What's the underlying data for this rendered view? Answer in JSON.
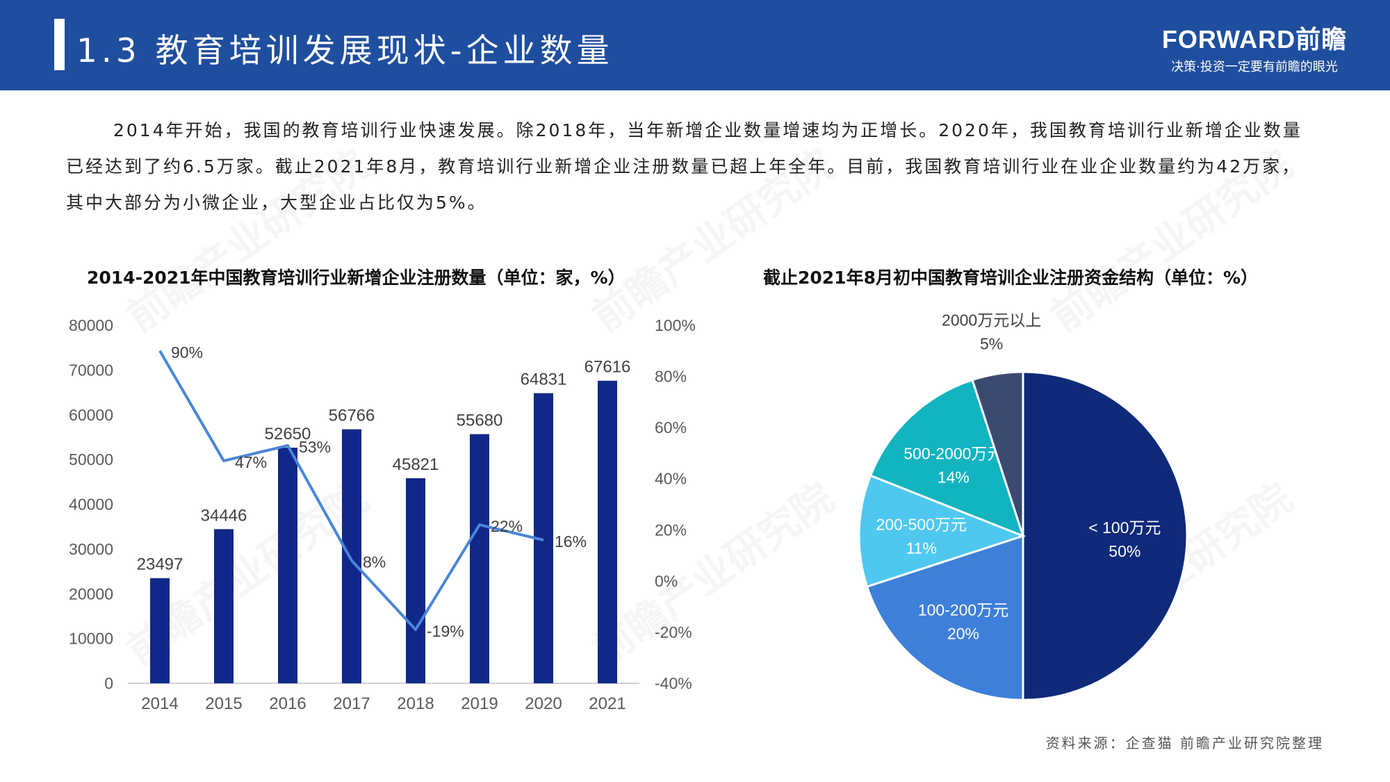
{
  "header": {
    "title": "1.3 教育培训发展现状-企业数量",
    "brand_name": "FORWARD前瞻",
    "brand_slogan": "决策·投资一定要有前瞻的眼光"
  },
  "intro_text": "2014年开始，我国的教育培训行业快速发展。除2018年，当年新增企业数量增速均为正增长。2020年，我国教育培训行业新增企业数量已经达到了约6.5万家。截止2021年8月，教育培训行业新增企业注册数量已超上年全年。目前，我国教育培训行业在业企业数量约为42万家，其中大部分为小微企业，大型企业占比仅为5%。",
  "source": "资料来源：企查猫  前瞻产业研究院整理",
  "watermark": "前瞻产业研究院",
  "colors": {
    "header_bg": "#1f4e9e",
    "bar": "#10288a",
    "line": "#4a86d8"
  },
  "chart_data": [
    {
      "type": "bar",
      "title": "2014-2021年中国教育培训行业新增企业注册数量（单位：家，%）",
      "categories": [
        "2014",
        "2015",
        "2016",
        "2017",
        "2018",
        "2019",
        "2020",
        "2021"
      ],
      "series": [
        {
          "values": [
            23497,
            34446,
            52650,
            56766,
            45821,
            55680,
            64831,
            67616
          ]
        },
        {
          "type": "line",
          "values": [
            90,
            47,
            53,
            8,
            -19,
            22,
            16,
            null
          ],
          "labels": [
            "90%",
            "47%",
            "53%",
            "8%",
            "-19%",
            "22%",
            "16%",
            ""
          ]
        }
      ],
      "left_axis": {
        "ylim": [
          0,
          80000
        ],
        "ticks": [
          "0",
          "10000",
          "20000",
          "30000",
          "40000",
          "50000",
          "60000",
          "70000",
          "80000"
        ]
      },
      "right_axis": {
        "ylim": [
          -40,
          100
        ],
        "ticks": [
          "-40%",
          "-20%",
          "0%",
          "20%",
          "40%",
          "60%",
          "80%",
          "100%"
        ]
      },
      "grid": false,
      "legend": "none"
    },
    {
      "type": "pie",
      "title": "截止2021年8月初中国教育培训企业注册资金结构（单位：%）",
      "slices": [
        {
          "label": "< 100万元",
          "value": 50,
          "value_label": "50%",
          "color": "#0e2a79"
        },
        {
          "label": "100-200万元",
          "value": 20,
          "value_label": "20%",
          "color": "#3d7fd9"
        },
        {
          "label": "200-500万元",
          "value": 11,
          "value_label": "11%",
          "color": "#4fc8f0"
        },
        {
          "label": "500-2000万元",
          "value": 14,
          "value_label": "14%",
          "color": "#12b4c0"
        },
        {
          "label": "2000万元以上",
          "value": 5,
          "value_label": "5%",
          "color": "#3c4a72"
        }
      ],
      "legend": "none"
    }
  ]
}
